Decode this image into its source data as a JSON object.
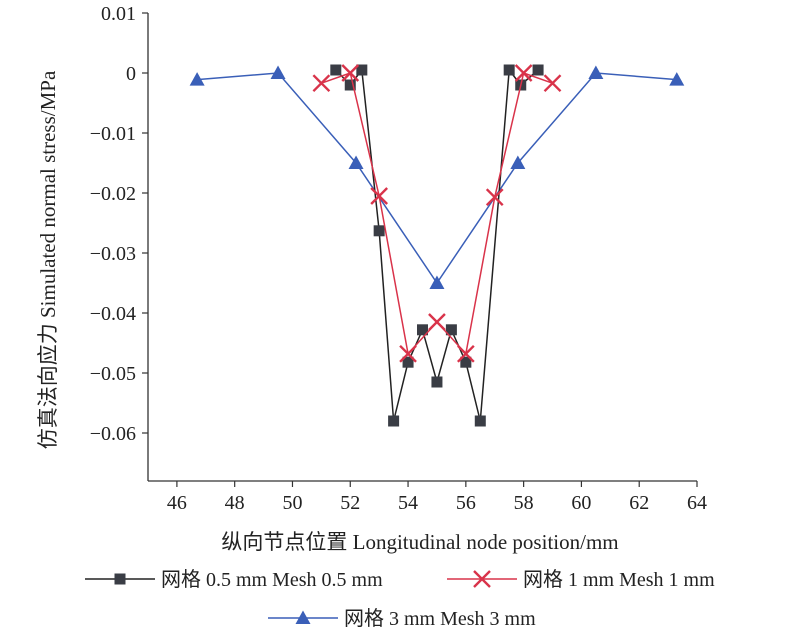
{
  "chart_data": {
    "type": "line",
    "xlabel": "纵向节点位置 Longitudinal node position/mm",
    "ylabel": "仿真法向应力 Simulated normal stress/MPa",
    "xlim": [
      45,
      64
    ],
    "ylim": [
      -0.068,
      0.01
    ],
    "xticks": [
      46,
      48,
      50,
      52,
      54,
      56,
      58,
      60,
      62,
      64
    ],
    "yticks": [
      0.01,
      0,
      -0.01,
      -0.02,
      -0.03,
      -0.04,
      -0.05,
      -0.06
    ],
    "ytick_labels": [
      "0.01",
      "0",
      "−0.01",
      "−0.02",
      "−0.03",
      "−0.04",
      "−0.05",
      "−0.06"
    ],
    "grid": false,
    "legend_position": "bottom",
    "series": [
      {
        "name": "网格 0.5 mm Mesh 0.5 mm",
        "color": "#222222",
        "marker": "square",
        "marker_color": "#3a3d45",
        "x": [
          51.5,
          52.0,
          52.4,
          53.0,
          53.5,
          54.0,
          54.5,
          55.0,
          55.5,
          56.0,
          56.5,
          57.5,
          57.9,
          58.5
        ],
        "y": [
          0.0005,
          -0.002,
          0.0005,
          -0.0263,
          -0.058,
          -0.0482,
          -0.0428,
          -0.0515,
          -0.0428,
          -0.0482,
          -0.058,
          0.0005,
          -0.002,
          0.0005
        ]
      },
      {
        "name": "网格 1 mm Mesh 1 mm",
        "color": "#d9334a",
        "marker": "x",
        "marker_color": "#d9334a",
        "x": [
          51.0,
          52.0,
          53.0,
          54.0,
          55.0,
          56.0,
          57.0,
          58.0,
          59.0
        ],
        "y": [
          -0.0017,
          0.0,
          -0.0205,
          -0.0468,
          -0.0415,
          -0.0468,
          -0.0207,
          0.0,
          -0.0017
        ]
      },
      {
        "name": "网格 3 mm Mesh 3 mm",
        "color": "#3a5fb8",
        "marker": "triangle",
        "marker_color": "#3a5fb8",
        "x": [
          46.7,
          49.5,
          52.2,
          55.0,
          57.8,
          60.5,
          63.3
        ],
        "y": [
          -0.0011,
          0.0,
          -0.015,
          -0.035,
          -0.015,
          0.0,
          -0.0011
        ]
      }
    ]
  }
}
